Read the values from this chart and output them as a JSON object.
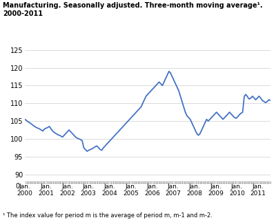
{
  "title_line1": "Manufacturing. Seasonally adjusted. Three-month moving average¹.",
  "title_line2": "2000-2011",
  "footnote": "¹ The index value for period m is the average of period m, m-1 and m-2.",
  "line_color": "#4472c4",
  "line_width": 1.3,
  "ylim": [
    88,
    127
  ],
  "yticks": [
    90,
    95,
    100,
    105,
    110,
    115,
    120,
    125
  ],
  "y0_label": "0",
  "xlabel_years": [
    "Jan.\n2000",
    "Jan.\n2001",
    "Jan.\n2002",
    "Jan.\n2003",
    "Jan.\n2004",
    "Jan.\n2005",
    "Jan.\n2006",
    "Jan.\n2007",
    "Jan.\n2008",
    "Jan.\n2009",
    "Jan.\n2010",
    "Jan.\n2011"
  ],
  "background_color": "#ffffff",
  "values": [
    105.5,
    105.2,
    104.8,
    104.5,
    104.2,
    103.8,
    103.5,
    103.2,
    103.0,
    102.8,
    102.5,
    102.2,
    102.8,
    103.0,
    103.2,
    103.5,
    102.8,
    102.2,
    101.8,
    101.5,
    101.2,
    101.0,
    100.8,
    100.5,
    101.0,
    101.5,
    102.0,
    102.5,
    102.0,
    101.5,
    101.0,
    100.5,
    100.2,
    100.0,
    99.8,
    99.5,
    97.5,
    97.0,
    96.5,
    96.8,
    97.0,
    97.2,
    97.5,
    97.8,
    98.0,
    97.5,
    97.0,
    96.8,
    97.5,
    98.0,
    98.5,
    99.0,
    99.5,
    100.0,
    100.5,
    101.0,
    101.5,
    102.0,
    102.5,
    103.0,
    103.5,
    104.0,
    104.5,
    105.0,
    105.5,
    106.0,
    106.5,
    107.0,
    107.5,
    108.0,
    108.5,
    109.0,
    110.0,
    111.0,
    112.0,
    112.5,
    113.0,
    113.5,
    114.0,
    114.5,
    115.0,
    115.5,
    116.0,
    115.5,
    115.0,
    116.0,
    117.0,
    118.0,
    119.0,
    118.5,
    117.5,
    116.5,
    115.5,
    114.5,
    113.5,
    112.0,
    110.5,
    109.0,
    107.5,
    106.5,
    106.0,
    105.5,
    104.5,
    103.5,
    102.5,
    101.5,
    101.0,
    101.5,
    102.5,
    103.5,
    104.5,
    105.5,
    105.0,
    105.5,
    106.0,
    106.5,
    107.0,
    107.5,
    107.0,
    106.5,
    106.0,
    105.5,
    106.0,
    106.5,
    107.0,
    107.5,
    107.0,
    106.5,
    106.0,
    105.8,
    106.2,
    106.8,
    107.2,
    107.5,
    112.0,
    112.5,
    111.8,
    111.2,
    111.5,
    112.0,
    111.5,
    111.0,
    111.5,
    112.0,
    111.5,
    110.8,
    110.5,
    110.2,
    110.5,
    111.0,
    110.8
  ]
}
